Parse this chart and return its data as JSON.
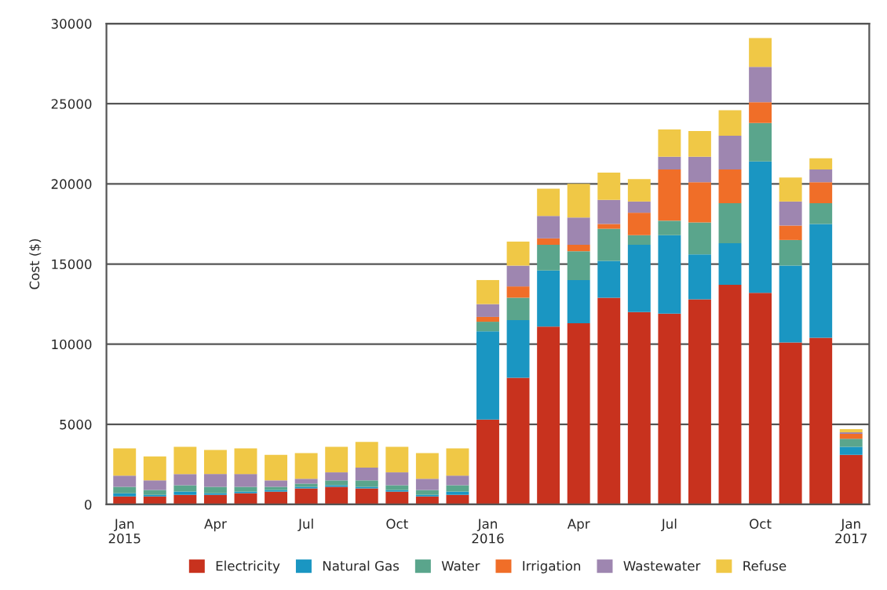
{
  "chart_data": {
    "type": "bar",
    "stacked": true,
    "ylabel": "Cost ($)",
    "categories": [
      "Jan\n2015",
      null,
      null,
      "Apr",
      null,
      null,
      "Jul",
      null,
      null,
      "Oct",
      null,
      null,
      "Jan\n2016",
      null,
      null,
      "Apr",
      null,
      null,
      "Jul",
      null,
      null,
      "Oct",
      null,
      null,
      "Jan\n2017"
    ],
    "series": [
      {
        "name": "Electricity",
        "color": "#c8321e",
        "values": [
          500,
          500,
          600,
          600,
          700,
          800,
          1000,
          1100,
          1000,
          800,
          500,
          600,
          5300,
          7900,
          11100,
          11300,
          12900,
          12000,
          11900,
          12800,
          13700,
          13200,
          10100,
          10400,
          3100
        ]
      },
      {
        "name": "Natural Gas",
        "color": "#1a96c2",
        "values": [
          200,
          100,
          200,
          100,
          100,
          100,
          100,
          100,
          100,
          100,
          100,
          200,
          5500,
          3600,
          3500,
          2700,
          2300,
          4200,
          4900,
          2800,
          2600,
          8200,
          4800,
          7100,
          500
        ]
      },
      {
        "name": "Water",
        "color": "#5aa58c",
        "values": [
          400,
          300,
          400,
          400,
          300,
          200,
          200,
          300,
          400,
          300,
          300,
          400,
          600,
          1400,
          1600,
          1800,
          2000,
          600,
          900,
          2000,
          2500,
          2400,
          1600,
          1300,
          500
        ]
      },
      {
        "name": "Irrigation",
        "color": "#f06e28",
        "values": [
          0,
          0,
          0,
          0,
          0,
          0,
          0,
          0,
          0,
          0,
          0,
          0,
          300,
          700,
          400,
          400,
          300,
          1400,
          3200,
          2500,
          2100,
          1300,
          900,
          1300,
          300
        ]
      },
      {
        "name": "Wastewater",
        "color": "#9e86b0",
        "values": [
          700,
          600,
          700,
          800,
          800,
          400,
          300,
          500,
          800,
          800,
          700,
          600,
          800,
          1300,
          1400,
          1700,
          1500,
          700,
          800,
          1600,
          2100,
          2200,
          1500,
          800,
          100
        ]
      },
      {
        "name": "Refuse",
        "color": "#f0c846",
        "values": [
          1700,
          1500,
          1700,
          1500,
          1600,
          1600,
          1600,
          1600,
          1600,
          1600,
          1600,
          1700,
          1500,
          1500,
          1700,
          2100,
          1700,
          1400,
          1700,
          1600,
          1600,
          1800,
          1500,
          700,
          200
        ]
      }
    ],
    "ylim": [
      0,
      30000
    ],
    "yticks": [
      0,
      5000,
      10000,
      15000,
      20000,
      25000,
      30000
    ],
    "grid": "y",
    "legend": "bottom"
  }
}
